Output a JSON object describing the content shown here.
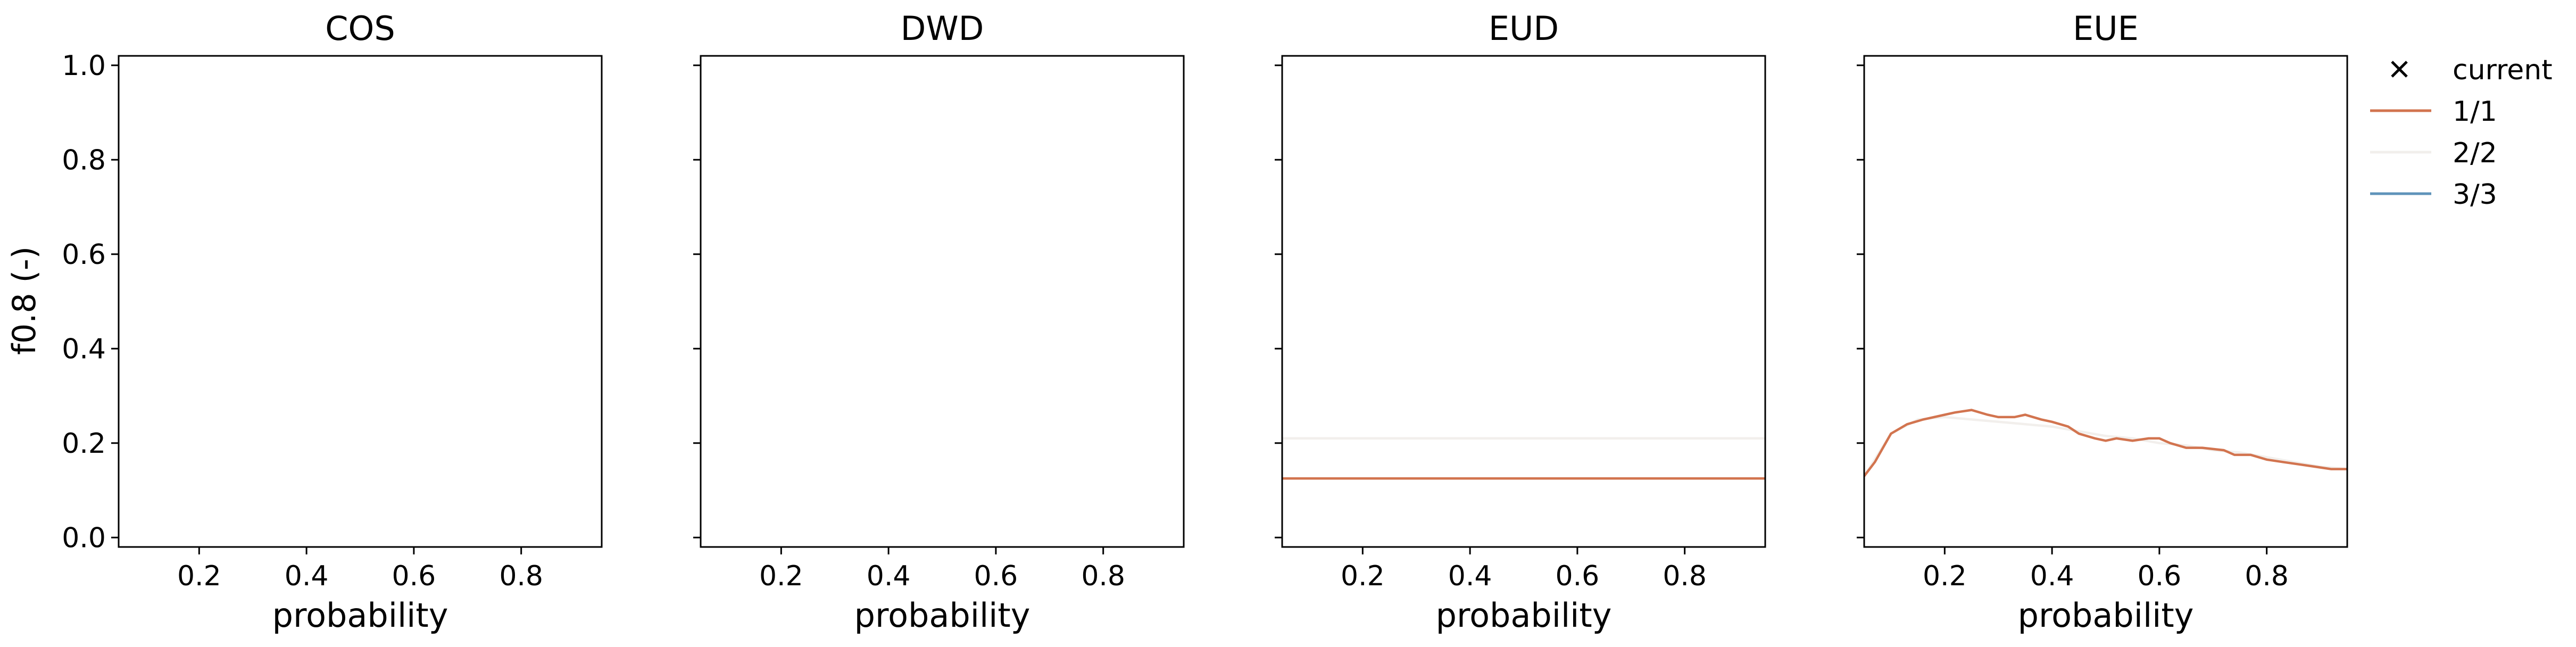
{
  "figure": {
    "ylabel": "f0.8 (-)"
  },
  "legend": {
    "placement": "outside right, top",
    "entries": [
      {
        "label": "current",
        "marker": "x",
        "color": "#000000"
      },
      {
        "label": "1/1",
        "color": "#d2744f"
      },
      {
        "label": "2/2",
        "color": "#f2efec"
      },
      {
        "label": "3/3",
        "color": "#5f93ba"
      }
    ]
  },
  "chart_data": [
    {
      "type": "line",
      "title": "COS",
      "xlabel": "probability",
      "ylabel": "f0.8 (-)",
      "xlim": [
        0.05,
        0.95
      ],
      "ylim": [
        -0.02,
        1.02
      ],
      "xticks": [
        "0.2",
        "0.4",
        "0.6",
        "0.8"
      ],
      "yticks": [
        "0.0",
        "0.2",
        "0.4",
        "0.6",
        "0.8",
        "1.0"
      ],
      "series": []
    },
    {
      "type": "line",
      "title": "DWD",
      "xlabel": "probability",
      "xlim": [
        0.05,
        0.95
      ],
      "ylim": [
        -0.02,
        1.02
      ],
      "xticks": [
        "0.2",
        "0.4",
        "0.6",
        "0.8"
      ],
      "series": []
    },
    {
      "type": "line",
      "title": "EUD",
      "xlabel": "probability",
      "xlim": [
        0.05,
        0.95
      ],
      "ylim": [
        -0.02,
        1.02
      ],
      "xticks": [
        "0.2",
        "0.4",
        "0.6",
        "0.8"
      ],
      "series": [
        {
          "name": "2/2",
          "color": "#f2efec",
          "x": [
            0.05,
            0.95
          ],
          "y": [
            0.21,
            0.21
          ]
        },
        {
          "name": "1/1",
          "color": "#d2744f",
          "x": [
            0.05,
            0.95
          ],
          "y": [
            0.125,
            0.125
          ]
        }
      ]
    },
    {
      "type": "line",
      "title": "EUE",
      "xlabel": "probability",
      "xlim": [
        0.05,
        0.95
      ],
      "ylim": [
        -0.02,
        1.02
      ],
      "xticks": [
        "0.2",
        "0.4",
        "0.6",
        "0.8"
      ],
      "series": [
        {
          "name": "2/2",
          "color": "#f2efec",
          "x": [
            0.05,
            0.1,
            0.15,
            0.2,
            0.25,
            0.3,
            0.35,
            0.4,
            0.45,
            0.5,
            0.55,
            0.6,
            0.65,
            0.7,
            0.75,
            0.8,
            0.85,
            0.9,
            0.95
          ],
          "y": [
            0.13,
            0.22,
            0.25,
            0.255,
            0.25,
            0.245,
            0.24,
            0.235,
            0.225,
            0.215,
            0.21,
            0.2,
            0.195,
            0.185,
            0.18,
            0.17,
            0.16,
            0.15,
            0.145
          ]
        },
        {
          "name": "1/1",
          "color": "#d2744f",
          "x": [
            0.05,
            0.07,
            0.1,
            0.13,
            0.16,
            0.2,
            0.22,
            0.25,
            0.28,
            0.3,
            0.33,
            0.35,
            0.38,
            0.4,
            0.43,
            0.45,
            0.48,
            0.5,
            0.52,
            0.55,
            0.58,
            0.6,
            0.62,
            0.65,
            0.68,
            0.72,
            0.74,
            0.77,
            0.8,
            0.83,
            0.86,
            0.89,
            0.92,
            0.95
          ],
          "y": [
            0.13,
            0.16,
            0.22,
            0.24,
            0.25,
            0.26,
            0.265,
            0.27,
            0.26,
            0.255,
            0.255,
            0.26,
            0.25,
            0.245,
            0.235,
            0.22,
            0.21,
            0.205,
            0.21,
            0.205,
            0.21,
            0.21,
            0.2,
            0.19,
            0.19,
            0.185,
            0.175,
            0.175,
            0.165,
            0.16,
            0.155,
            0.15,
            0.145,
            0.145
          ]
        }
      ]
    }
  ]
}
